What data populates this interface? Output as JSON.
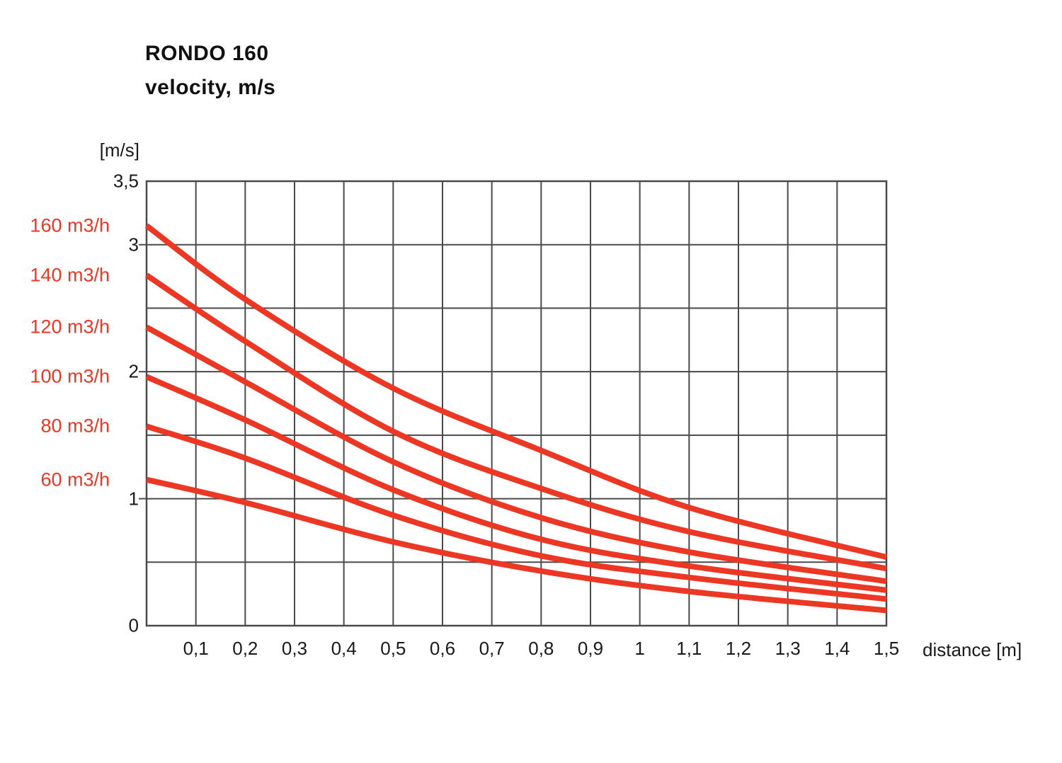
{
  "title": {
    "line1": "RONDO 160",
    "line2": "velocity, m/s"
  },
  "colors": {
    "series": "#EB3723",
    "grid": "#4A4A4A",
    "text": "#1A1A1A",
    "background": "#FFFFFF"
  },
  "chart_data": {
    "type": "line",
    "title": "RONDO 160 velocity, m/s",
    "xlabel": "distance [m]",
    "ylabel": "[m/s]",
    "xlim": [
      0,
      1.5
    ],
    "ylim": [
      0,
      3.5
    ],
    "x_grid_step": 0.1,
    "y_grid_step": 0.5,
    "grid": true,
    "legend_position": "left-of-plot",
    "x_tick_labels": [
      {
        "v": 0.1,
        "t": "0,1"
      },
      {
        "v": 0.2,
        "t": "0,2"
      },
      {
        "v": 0.3,
        "t": "0,3"
      },
      {
        "v": 0.4,
        "t": "0,4"
      },
      {
        "v": 0.5,
        "t": "0,5"
      },
      {
        "v": 0.6,
        "t": "0,6"
      },
      {
        "v": 0.7,
        "t": "0,7"
      },
      {
        "v": 0.8,
        "t": "0,8"
      },
      {
        "v": 0.9,
        "t": "0,9"
      },
      {
        "v": 1.0,
        "t": "1"
      },
      {
        "v": 1.1,
        "t": "1,1"
      },
      {
        "v": 1.2,
        "t": "1,2"
      },
      {
        "v": 1.3,
        "t": "1,3"
      },
      {
        "v": 1.4,
        "t": "1,4"
      },
      {
        "v": 1.5,
        "t": "1,5"
      }
    ],
    "y_tick_labels": [
      {
        "v": 3.5,
        "t": "3,5",
        "tick": false
      },
      {
        "v": 3.0,
        "t": "3",
        "tick": true
      },
      {
        "v": 2.0,
        "t": "2",
        "tick": true
      },
      {
        "v": 1.0,
        "t": "1",
        "tick": true
      },
      {
        "v": 0.0,
        "t": "0",
        "tick": false
      }
    ],
    "x": [
      0,
      0.2,
      0.5,
      0.8,
      1.1,
      1.5
    ],
    "series": [
      {
        "name": "160 m3/h",
        "values": [
          3.15,
          2.57,
          1.87,
          1.38,
          0.93,
          0.54
        ]
      },
      {
        "name": "140 m3/h",
        "values": [
          2.76,
          2.24,
          1.53,
          1.08,
          0.74,
          0.45
        ]
      },
      {
        "name": "120 m3/h",
        "values": [
          2.35,
          1.92,
          1.29,
          0.85,
          0.58,
          0.35
        ]
      },
      {
        "name": "100 m3/h",
        "values": [
          1.96,
          1.62,
          1.07,
          0.68,
          0.47,
          0.28
        ]
      },
      {
        "name": "80 m3/h",
        "values": [
          1.57,
          1.32,
          0.87,
          0.55,
          0.38,
          0.21
        ]
      },
      {
        "name": "60 m3/h",
        "values": [
          1.15,
          0.97,
          0.66,
          0.43,
          0.27,
          0.12
        ]
      }
    ]
  }
}
